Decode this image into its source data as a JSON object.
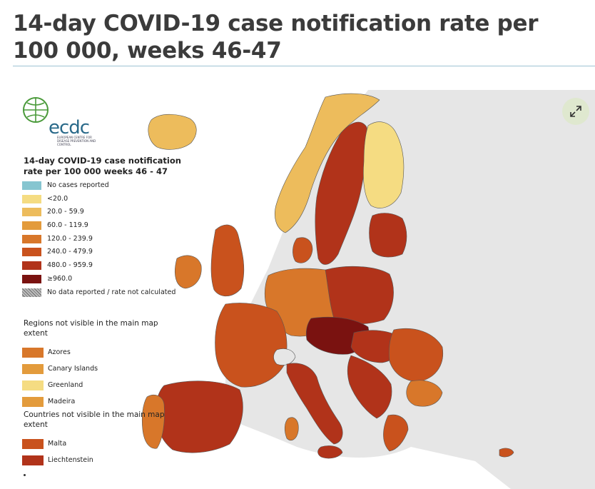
{
  "page": {
    "title": "14-day COVID-19 case notification rate per 100 000, weeks 46-47"
  },
  "map": {
    "logo": {
      "text": "ecdc",
      "subtitle": "EUROPEAN CENTRE FOR DISEASE PREVENTION AND CONTROL"
    },
    "expand_icon": "expand-arrows-icon",
    "legend": {
      "title": "14-day COVID-19 case notification rate per 100 000 weeks 46 - 47",
      "items": [
        {
          "label": "No cases reported",
          "color": "#86c5d0"
        },
        {
          "label": "<20.0",
          "color": "#f5dc82"
        },
        {
          "label": "20.0 - 59.9",
          "color": "#edbc5c"
        },
        {
          "label": "60.0 - 119.9",
          "color": "#e39b3c"
        },
        {
          "label": "120.0 - 239.9",
          "color": "#d8772a"
        },
        {
          "label": "240.0 - 479.9",
          "color": "#c9521d"
        },
        {
          "label": "480.0 - 959.9",
          "color": "#b1331a"
        },
        {
          "label": "≥960.0",
          "color": "#7a1210"
        },
        {
          "label": "No data reported / rate not calculated",
          "color": "hatched"
        }
      ]
    },
    "regions_heading": "Regions not visible in the main map extent",
    "regions": [
      {
        "label": "Azores",
        "color": "#d8772a"
      },
      {
        "label": "Canary Islands",
        "color": "#e39b3c"
      },
      {
        "label": "Greenland",
        "color": "#f5dc82"
      },
      {
        "label": "Madeira",
        "color": "#e39b3c"
      }
    ],
    "countries_heading": "Countries not visible in the main map extent",
    "countries": [
      {
        "label": "Malta",
        "color": "#c9521d"
      },
      {
        "label": "Liechtenstein",
        "color": "#b1331a"
      }
    ],
    "colors": {
      "sea": "#ffffff",
      "non_eu": "#e6e6e6",
      "border": "#555555"
    }
  }
}
